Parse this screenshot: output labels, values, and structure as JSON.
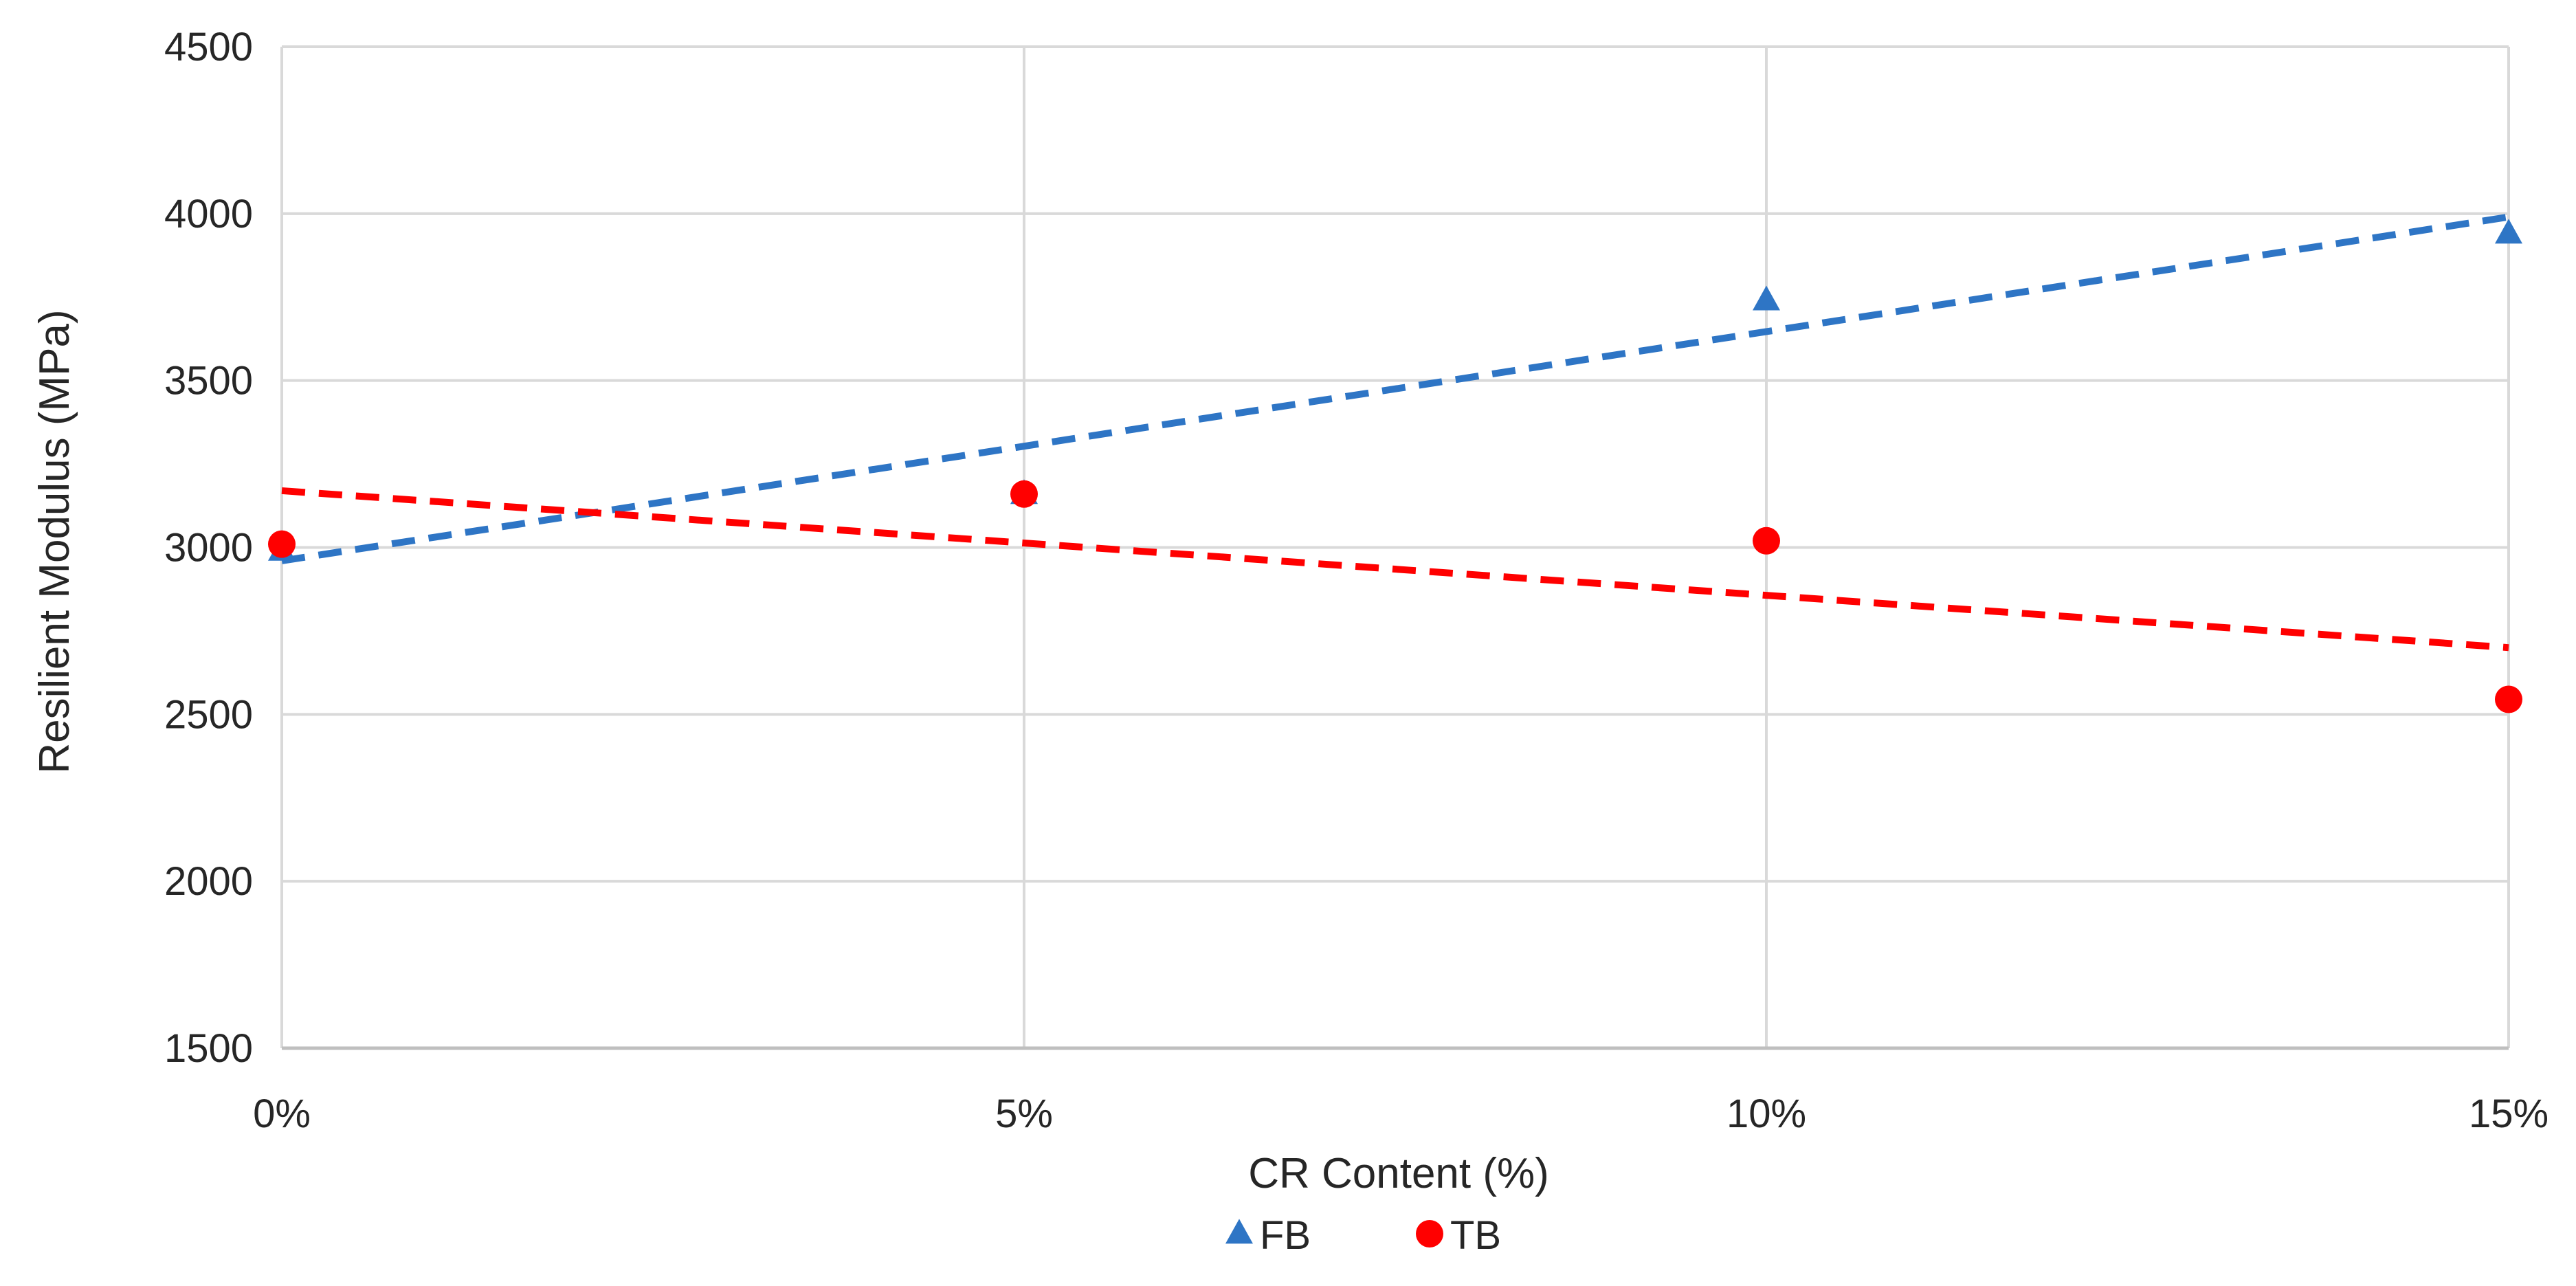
{
  "colors": {
    "fb": "#2E75C5",
    "tb": "#FF0000",
    "grid": "#D9D9D9",
    "axis": "#BFBFBF",
    "text": "#262626"
  },
  "chart_data": {
    "type": "scatter",
    "title": "",
    "xlabel": "CR Content  (%)",
    "ylabel": "Resilient Modulus (MPa)",
    "x_categories": [
      "0%",
      "5%",
      "10%",
      "15%"
    ],
    "x_values": [
      0,
      5,
      10,
      15
    ],
    "xlim": [
      0,
      15
    ],
    "ylim": [
      1500,
      4500
    ],
    "y_ticks": [
      1500,
      2000,
      2500,
      3000,
      3500,
      4000,
      4500
    ],
    "x_ticks": [
      0,
      5,
      10,
      15
    ],
    "grid": true,
    "legend_position": "bottom",
    "series": [
      {
        "name": "FB",
        "marker": "triangle",
        "color_key": "fb",
        "points": [
          [
            0,
            2990
          ],
          [
            5,
            3160
          ],
          [
            10,
            3740
          ],
          [
            15,
            3940
          ]
        ],
        "trendline": {
          "style": "dashed",
          "from": [
            0,
            2960
          ],
          "to": [
            15,
            3990
          ]
        }
      },
      {
        "name": "TB",
        "marker": "circle",
        "color_key": "tb",
        "points": [
          [
            0,
            3010
          ],
          [
            5,
            3160
          ],
          [
            10,
            3020
          ],
          [
            15,
            2545
          ]
        ],
        "trendline": {
          "style": "dashed",
          "from": [
            0,
            3170
          ],
          "to": [
            15,
            2700
          ]
        }
      }
    ]
  }
}
